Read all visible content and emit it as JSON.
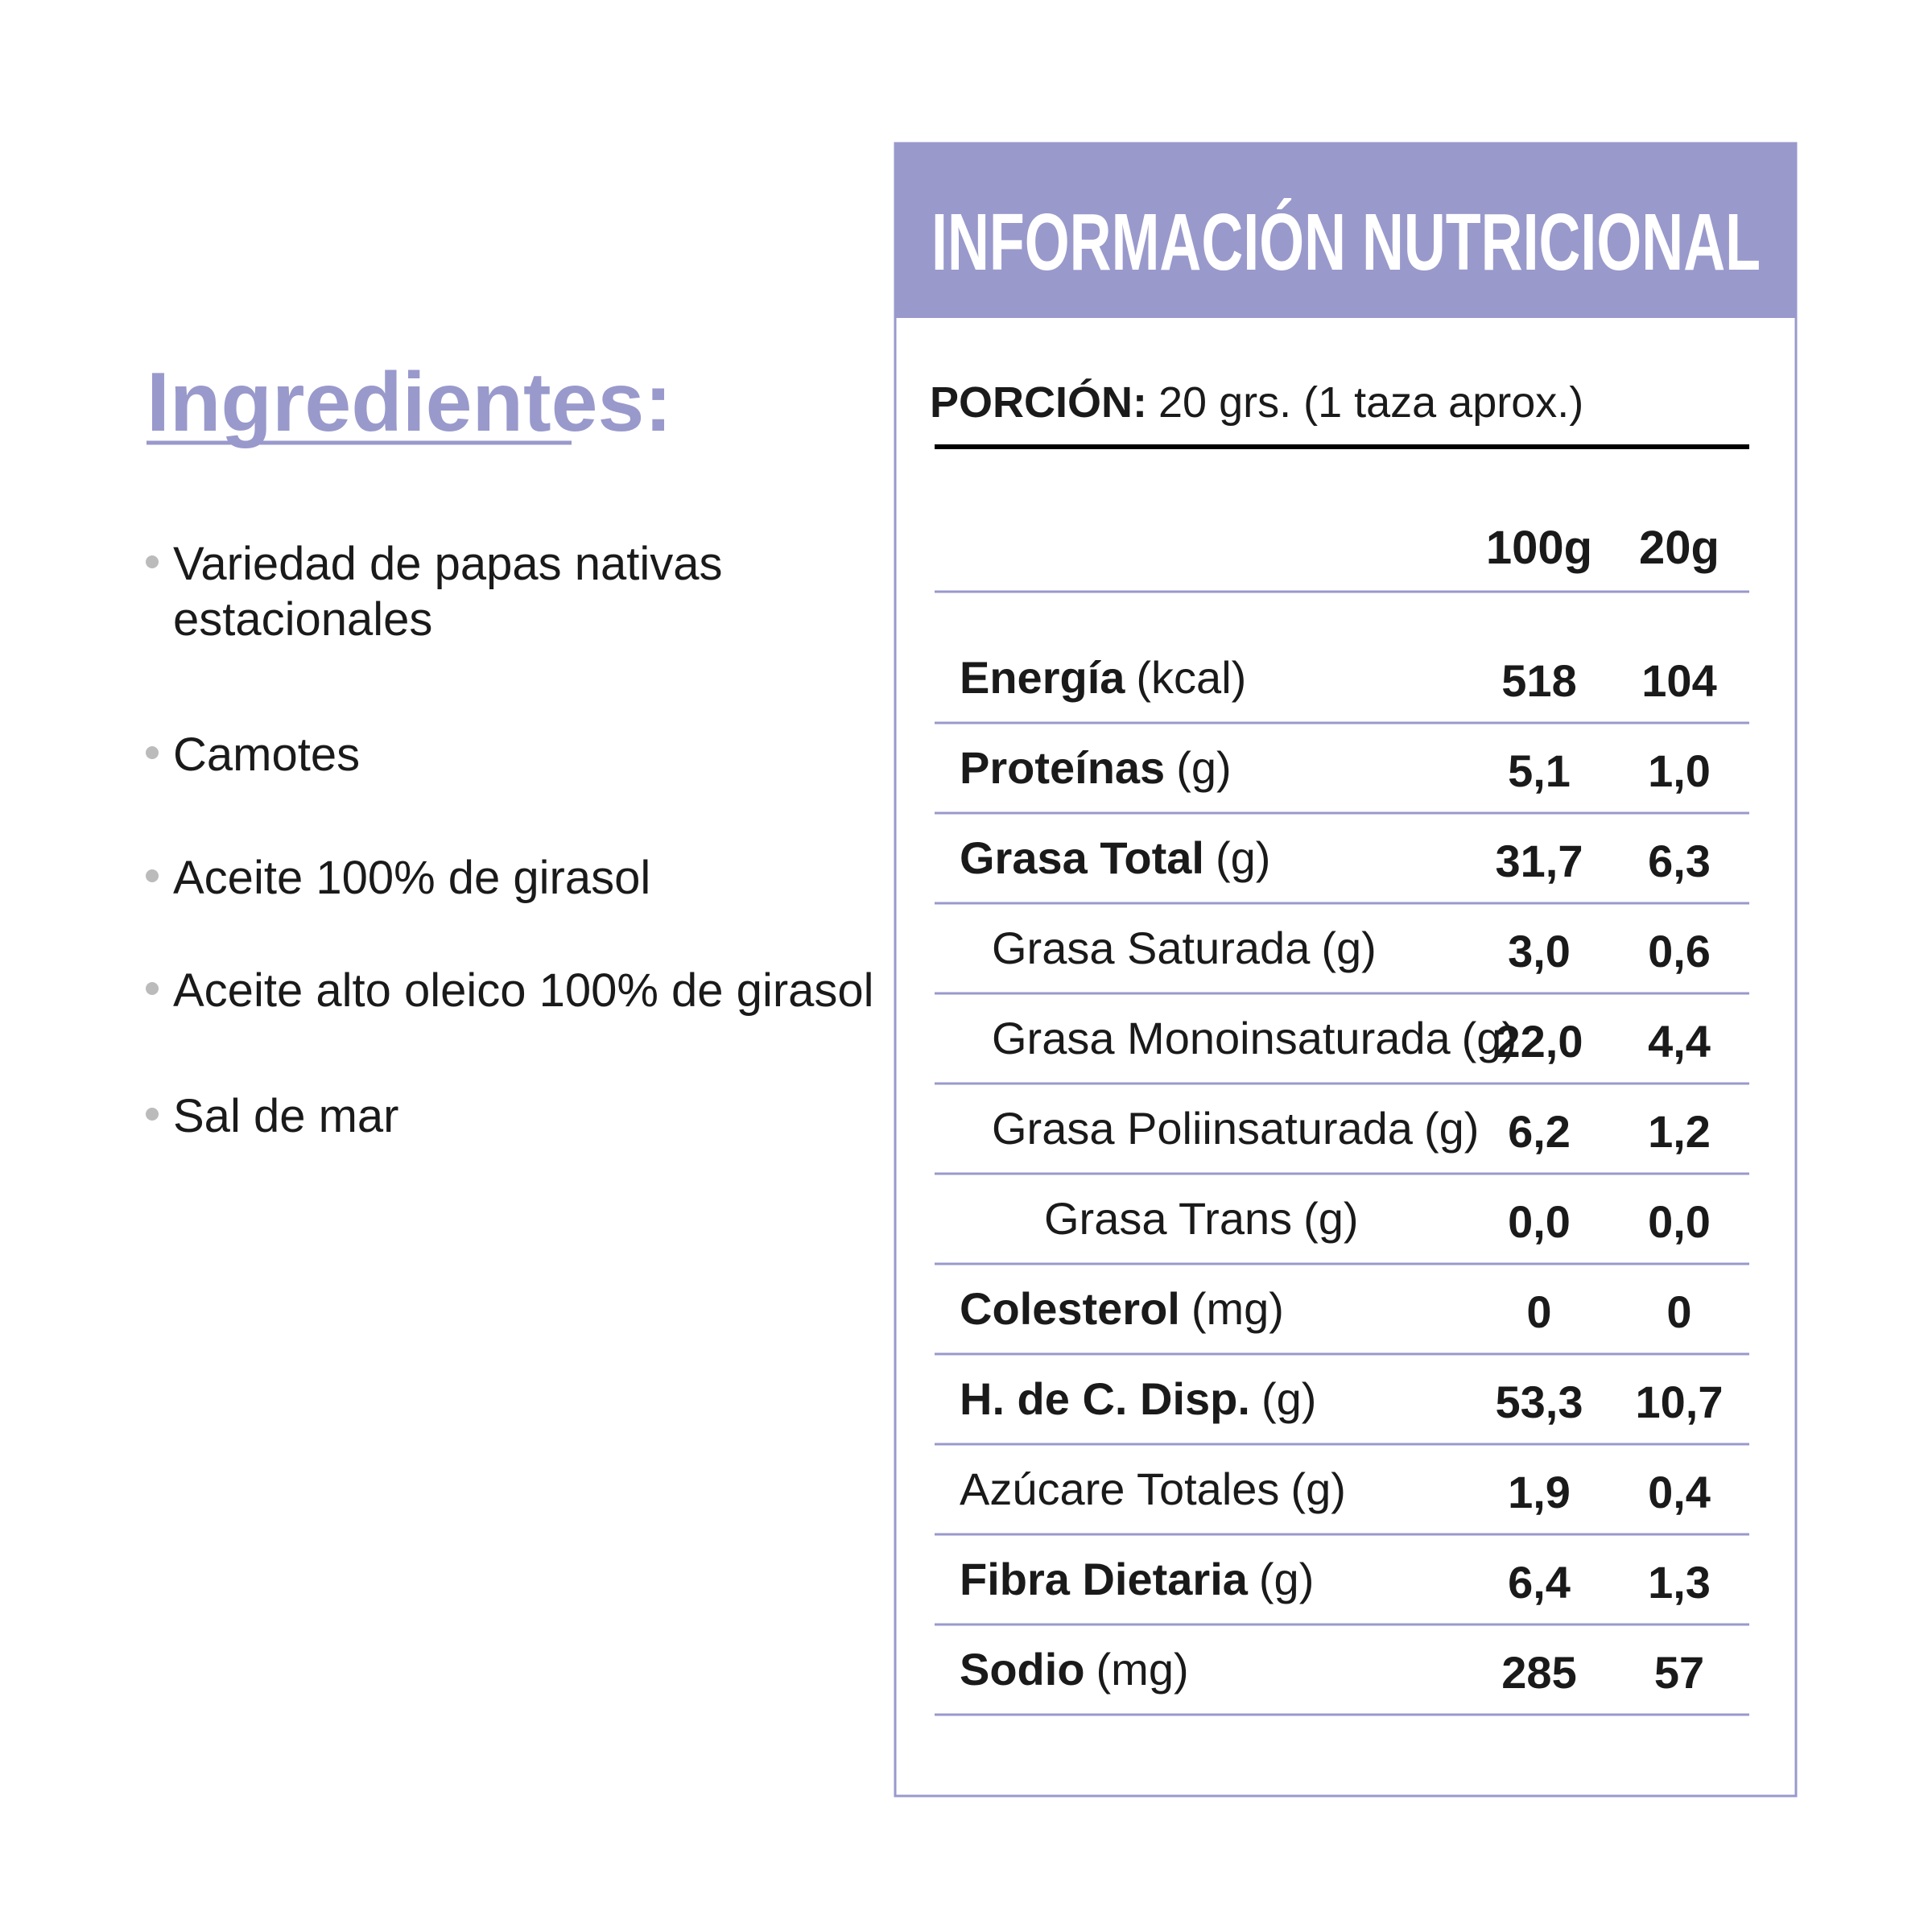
{
  "ingredients": {
    "title": "Ingredientes:",
    "items": [
      [
        "Variedad de papas nativas",
        "estacionales"
      ],
      [
        "Camotes"
      ],
      [
        "Aceite 100% de girasol"
      ],
      [
        "Aceite alto oleico 100% de girasol"
      ],
      [
        "Sal de mar"
      ]
    ]
  },
  "nutrition": {
    "title": "INFORMACIÓN NUTRICIONAL",
    "portion_label": "PORCIÓN:",
    "portion_value": "20 grs. (1 taza aprox.)",
    "columns": [
      "100g",
      "20g"
    ],
    "rows": [
      {
        "name": "Energía",
        "unit": "(kcal)",
        "values": [
          "518",
          "104"
        ]
      },
      {
        "name": "Proteínas",
        "unit": "(g)",
        "values": [
          "5,1",
          "1,0"
        ]
      },
      {
        "name": "Grasa Total",
        "unit": "(g)",
        "values": [
          "31,7",
          "6,3"
        ]
      },
      {
        "name": "Grasa Saturada",
        "unit": "(g)",
        "values": [
          "3,0",
          "0,6"
        ]
      },
      {
        "name": "Grasa Monoinsaturada",
        "unit": "(g)",
        "values": [
          "22,0",
          "4,4"
        ]
      },
      {
        "name": "Grasa Poliinsaturada",
        "unit": "(g)",
        "values": [
          "6,2",
          "1,2"
        ]
      },
      {
        "name": "Grasa Trans",
        "unit": "(g)",
        "values": [
          "0,0",
          "0,0"
        ]
      },
      {
        "name": "Colesterol",
        "unit": "(mg)",
        "values": [
          "0",
          "0"
        ]
      },
      {
        "name": "H. de C. Disp.",
        "unit": "(g)",
        "values": [
          "53,3",
          "10,7"
        ]
      },
      {
        "name": "Azúcare Totales",
        "unit": "(g)",
        "values": [
          "1,9",
          "0,4"
        ]
      },
      {
        "name": "Fibra Dietaria",
        "unit": "(g)",
        "values": [
          "6,4",
          "1,3"
        ]
      },
      {
        "name": "Sodio",
        "unit": "(mg)",
        "values": [
          "285",
          "57"
        ]
      }
    ]
  }
}
